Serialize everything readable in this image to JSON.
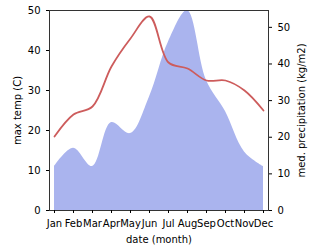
{
  "chart_data": {
    "type": "line",
    "x_label": "date (month)",
    "y_label": "max temp (C)",
    "y2_label": "med. precipitation (kg/m2)",
    "categories": [
      "Jan",
      "Feb",
      "Mar",
      "Apr",
      "May",
      "Jun",
      "Jul",
      "Aug",
      "Sep",
      "Oct",
      "Nov",
      "Dec"
    ],
    "series": [
      {
        "type": "area",
        "axis": "y2",
        "color": "#aab4ee",
        "values": [
          12,
          17,
          12,
          24,
          21,
          31,
          46,
          54.5,
          35.5,
          27,
          16,
          12
        ]
      },
      {
        "type": "line",
        "color": "#cd5c5c",
        "values": [
          18.5,
          24,
          26,
          36,
          43,
          48.5,
          37,
          35.5,
          32.5,
          32.5,
          30,
          25
        ]
      }
    ],
    "ylim": [
      0,
      50
    ],
    "yticks": [
      0,
      10,
      20,
      30,
      40,
      50
    ],
    "y2lim": [
      0,
      54.6
    ],
    "y2ticks": [
      0,
      10,
      20,
      30,
      40,
      50
    ],
    "grid": false
  }
}
